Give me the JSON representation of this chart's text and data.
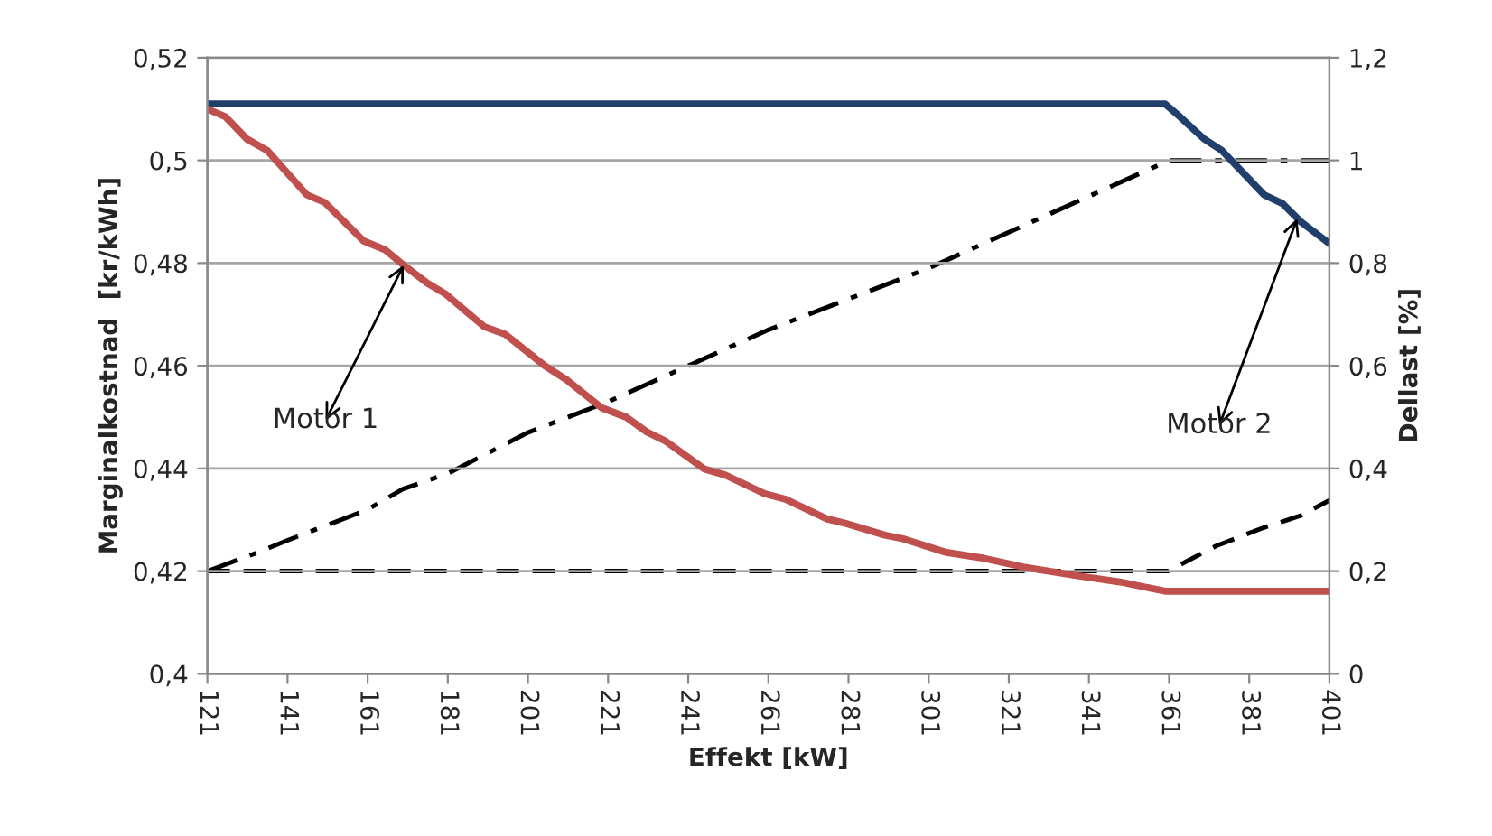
{
  "chart_data": {
    "type": "line",
    "xlabel": "Effekt [kW]",
    "ylabel": "Marginalkostnad  [kr/kWh]",
    "y2label": "Dellast [%]",
    "xlim": [
      121,
      401
    ],
    "xticks": [
      121,
      141,
      161,
      181,
      201,
      221,
      241,
      261,
      281,
      301,
      321,
      341,
      361,
      381,
      401
    ],
    "ylim": [
      0.4,
      0.52
    ],
    "yticks": [
      {
        "value": 0.4,
        "label": "0,4"
      },
      {
        "value": 0.42,
        "label": "0,42"
      },
      {
        "value": 0.44,
        "label": "0,44"
      },
      {
        "value": 0.46,
        "label": "0,46"
      },
      {
        "value": 0.48,
        "label": "0,48"
      },
      {
        "value": 0.5,
        "label": "0,5"
      },
      {
        "value": 0.52,
        "label": "0,52"
      }
    ],
    "y2lim": [
      0,
      1.2
    ],
    "y2ticks": [
      0,
      {
        "value": 0.2,
        "label": "0,2"
      },
      {
        "value": 0.4,
        "label": "0,4"
      },
      {
        "value": 0.6,
        "label": "0,6"
      },
      {
        "value": 0.8,
        "label": "0,8"
      },
      1,
      {
        "value": 1.2,
        "label": "1,2"
      }
    ],
    "grid": "y",
    "legend": false,
    "marker": "none",
    "series": [
      {
        "color": "#203f6b",
        "line_style": "solid",
        "x": [
          121,
          360,
          363.7,
          369.7,
          374.2,
          384.7,
          389.3,
          393.8,
          401
        ],
        "values": [
          0.511,
          0.511,
          0.5085,
          0.5042,
          0.5019,
          0.4933,
          0.4916,
          0.4881,
          0.4838
        ]
      },
      {
        "color": "#c0504d",
        "line_style": "solid",
        "x": [
          121,
          125.5,
          130.8,
          136,
          145.8,
          150.3,
          160,
          165.3,
          169.8,
          175.9,
          180.4,
          190.1,
          195.4,
          205.2,
          210.4,
          219.4,
          225.5,
          230.7,
          235.2,
          245,
          250.3,
          260,
          265.3,
          275.5,
          280.3,
          290.1,
          294.6,
          305.1,
          314.1,
          324.6,
          338.2,
          348.7,
          360,
          401
        ],
        "values": [
          0.51,
          0.5085,
          0.5042,
          0.5019,
          0.4933,
          0.4918,
          0.4843,
          0.4826,
          0.4797,
          0.4761,
          0.474,
          0.4676,
          0.4661,
          0.46,
          0.4574,
          0.4518,
          0.45,
          0.4471,
          0.4454,
          0.4399,
          0.4387,
          0.4351,
          0.434,
          0.4302,
          0.4293,
          0.427,
          0.4263,
          0.4237,
          0.4226,
          0.4208,
          0.4191,
          0.4179,
          0.4161,
          0.4161
        ]
      },
      {
        "color": "#000000",
        "line_style": "dashdot",
        "axis": "y2",
        "x": [
          121,
          133.8,
          141,
          161,
          169.8,
          181,
          201,
          221,
          241,
          261,
          281,
          301,
          321,
          341,
          361,
          401
        ],
        "values": [
          0.2,
          0.237,
          0.26,
          0.32,
          0.36,
          0.39,
          0.47,
          0.53,
          0.6,
          0.67,
          0.73,
          0.79,
          0.86,
          0.93,
          1.0,
          1.0
        ]
      },
      {
        "color": "#000000",
        "line_style": "dashed",
        "axis": "y2",
        "x": [
          121,
          360.7,
          372.7,
          384.7,
          393.8,
          401
        ],
        "values": [
          0.2,
          0.2,
          0.249,
          0.285,
          0.308,
          0.338
        ]
      }
    ],
    "annotations": [
      {
        "text": "Motor 1",
        "x": 170,
        "y": 0.4796
      },
      {
        "text": "Motor 2",
        "x": 393,
        "y": 0.4887
      }
    ]
  }
}
